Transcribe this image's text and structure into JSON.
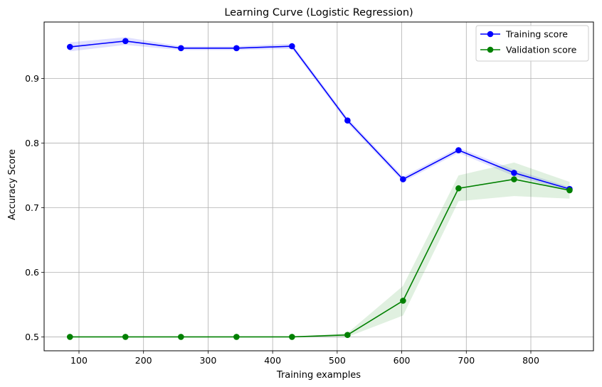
{
  "chart_data": {
    "type": "line",
    "title": "Learning Curve (Logistic Regression)",
    "xlabel": "Training examples",
    "ylabel": "Accuracy Score",
    "xlim": [
      46,
      897
    ],
    "ylim": [
      0.4785,
      0.9875
    ],
    "x_ticks": [
      100,
      200,
      300,
      400,
      500,
      600,
      700,
      800
    ],
    "y_ticks": [
      0.5,
      0.6,
      0.7,
      0.8,
      0.9
    ],
    "grid": true,
    "legend_position": "top-right",
    "x": [
      86,
      172,
      258,
      344,
      430,
      516,
      602,
      688,
      774,
      860
    ],
    "series": [
      {
        "name": "Training score",
        "color": "#0000ff",
        "values": [
          0.949,
          0.958,
          0.947,
          0.947,
          0.95,
          0.835,
          0.744,
          0.789,
          0.754,
          0.729
        ],
        "band_lower": [
          0.942,
          0.952,
          0.944,
          0.944,
          0.946,
          0.831,
          0.74,
          0.785,
          0.749,
          0.726
        ],
        "band_upper": [
          0.956,
          0.964,
          0.95,
          0.95,
          0.954,
          0.839,
          0.748,
          0.793,
          0.759,
          0.732
        ]
      },
      {
        "name": "Validation score",
        "color": "#008000",
        "values": [
          0.5,
          0.5,
          0.5,
          0.5,
          0.5,
          0.503,
          0.556,
          0.73,
          0.744,
          0.727
        ],
        "band_lower": [
          0.5,
          0.5,
          0.5,
          0.5,
          0.5,
          0.5,
          0.533,
          0.71,
          0.718,
          0.714
        ],
        "band_upper": [
          0.5,
          0.5,
          0.5,
          0.5,
          0.5,
          0.506,
          0.579,
          0.75,
          0.77,
          0.74
        ]
      }
    ]
  }
}
